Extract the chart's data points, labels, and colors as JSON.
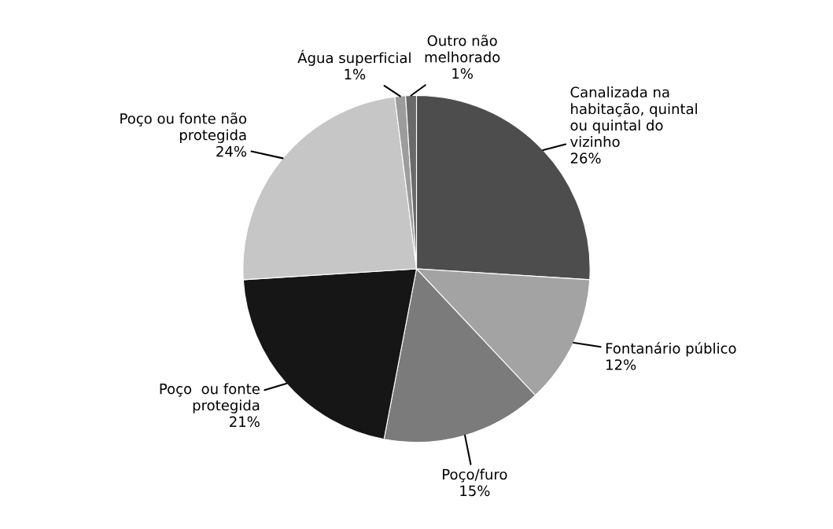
{
  "chart_data": {
    "type": "pie",
    "categories": [
      "Canalizada na\nhabitação, quintal\nou quintal do\nvizinho",
      "Fontanário público",
      "Poço/furo",
      "Poço  ou fonte\nprotegida",
      "Poço ou fonte não\nprotegida",
      "Água superficial",
      "Outro não\nmelhorado"
    ],
    "values": [
      26,
      12,
      15,
      21,
      24,
      1,
      1
    ],
    "value_labels": [
      "26%",
      "12%",
      "15%",
      "21%",
      "24%",
      "1%",
      "1%"
    ],
    "colors": [
      "#4d4d4d",
      "#a3a3a3",
      "#7b7b7b",
      "#161616",
      "#c6c6c6",
      "#9c9c9c",
      "#6a6a6a"
    ]
  }
}
